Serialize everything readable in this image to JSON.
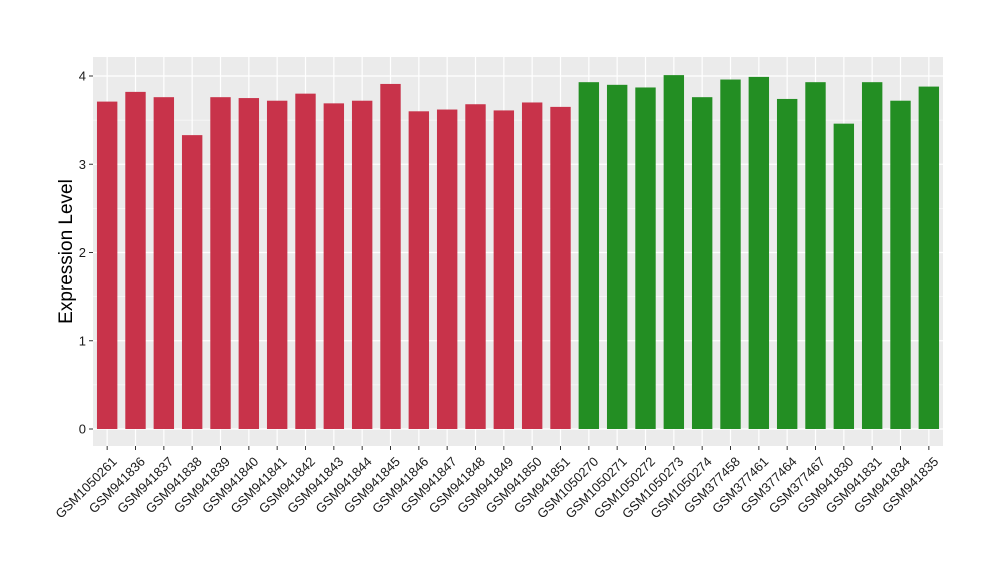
{
  "chart_data": {
    "type": "bar",
    "title": "",
    "xlabel": "",
    "ylabel": "Expression Level",
    "ylim": [
      0,
      4.2
    ],
    "yticks": [
      0,
      1,
      2,
      3,
      4
    ],
    "grid": true,
    "background": "#EBEBEB",
    "categories": [
      "GSM1050261",
      "GSM941836",
      "GSM941837",
      "GSM941838",
      "GSM941839",
      "GSM941840",
      "GSM941841",
      "GSM941842",
      "GSM941843",
      "GSM941844",
      "GSM941845",
      "GSM941846",
      "GSM941847",
      "GSM941848",
      "GSM941849",
      "GSM941850",
      "GSM941851",
      "GSM1050270",
      "GSM1050271",
      "GSM1050272",
      "GSM1050273",
      "GSM1050274",
      "GSM377458",
      "GSM377461",
      "GSM377464",
      "GSM377467",
      "GSM941830",
      "GSM941831",
      "GSM941834",
      "GSM941835"
    ],
    "values": [
      3.71,
      3.82,
      3.76,
      3.33,
      3.76,
      3.75,
      3.72,
      3.8,
      3.69,
      3.72,
      3.91,
      3.6,
      3.62,
      3.68,
      3.61,
      3.7,
      3.65,
      3.93,
      3.9,
      3.87,
      4.01,
      3.76,
      3.96,
      3.99,
      3.74,
      3.93,
      3.46,
      3.93,
      3.72,
      3.88
    ],
    "groups": [
      {
        "count": 17,
        "color": "#C8334A"
      },
      {
        "count": 13,
        "color": "#238E23"
      }
    ]
  }
}
